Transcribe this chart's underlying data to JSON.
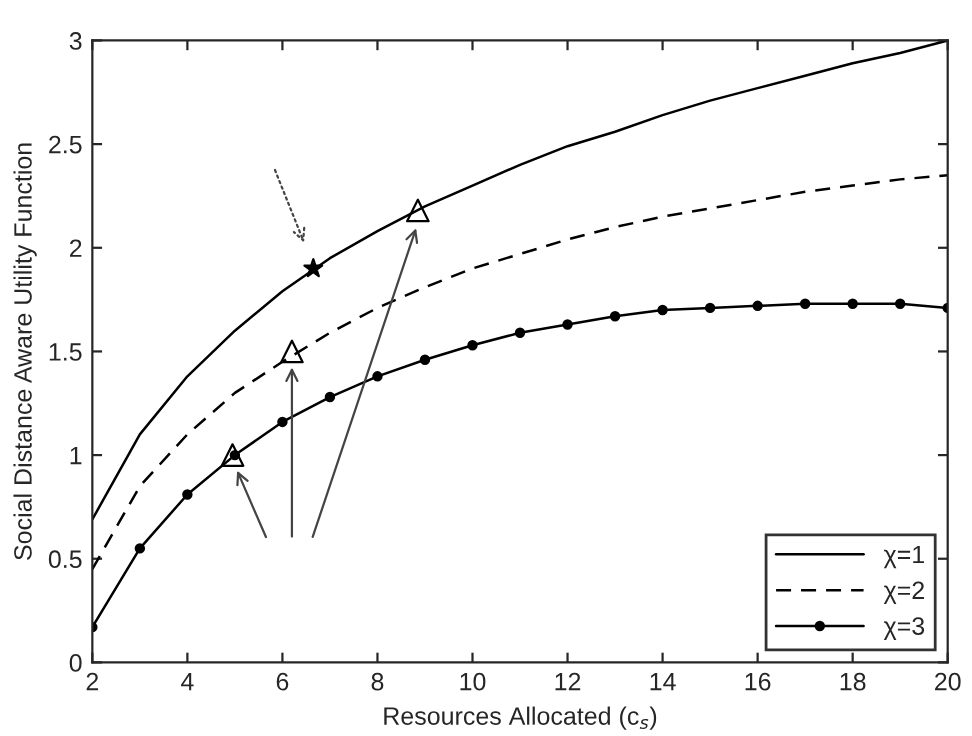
{
  "chart_data": {
    "type": "line",
    "xlabel": "Resources Allocated (c$_{s}$)",
    "ylabel": "Social Distance Aware Utility Function",
    "x": [
      2,
      3,
      4,
      5,
      6,
      7,
      8,
      9,
      10,
      11,
      12,
      13,
      14,
      15,
      16,
      17,
      18,
      19,
      20
    ],
    "series": [
      {
        "name": "χ=1",
        "color": "#000000",
        "line_style": "solid",
        "marker": "none",
        "values": [
          0.69,
          1.1,
          1.38,
          1.6,
          1.79,
          1.95,
          2.08,
          2.2,
          2.3,
          2.4,
          2.49,
          2.56,
          2.64,
          2.71,
          2.77,
          2.83,
          2.89,
          2.94,
          3.0
        ]
      },
      {
        "name": "χ=2",
        "color": "#000000",
        "line_style": "dashed",
        "marker": "none",
        "values": [
          0.45,
          0.85,
          1.1,
          1.3,
          1.45,
          1.59,
          1.71,
          1.81,
          1.9,
          1.97,
          2.04,
          2.1,
          2.15,
          2.19,
          2.23,
          2.27,
          2.3,
          2.33,
          2.35
        ]
      },
      {
        "name": "χ=3",
        "color": "#000000",
        "line_style": "solid",
        "marker": "circle",
        "values": [
          0.17,
          0.55,
          0.81,
          1.0,
          1.16,
          1.28,
          1.38,
          1.46,
          1.53,
          1.59,
          1.63,
          1.67,
          1.7,
          1.71,
          1.72,
          1.73,
          1.73,
          1.73,
          1.71
        ]
      },
      {
        "type": "scatter",
        "color": "#000000",
        "marker": "triangle",
        "x": [
          4.95,
          6.2,
          8.85
        ],
        "values": [
          1.0,
          1.5,
          2.18
        ]
      },
      {
        "type": "scatter",
        "color": "#000000",
        "marker": "star",
        "x": [
          6.65
        ],
        "values": [
          1.9
        ]
      }
    ],
    "xlim": [
      2,
      20
    ],
    "xticks": [
      2,
      4,
      6,
      8,
      10,
      12,
      14,
      16,
      18,
      20
    ],
    "ylim": [
      0,
      3
    ],
    "yticks": [
      0,
      0.5,
      1,
      1.5,
      2,
      2.5,
      3
    ],
    "grid": false,
    "legend": "bottom right"
  }
}
